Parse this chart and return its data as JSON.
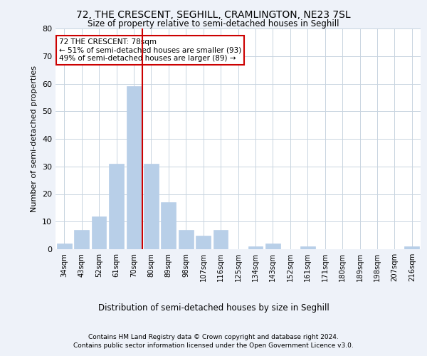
{
  "title1": "72, THE CRESCENT, SEGHILL, CRAMLINGTON, NE23 7SL",
  "title2": "Size of property relative to semi-detached houses in Seghill",
  "dist_label": "Distribution of semi-detached houses by size in Seghill",
  "ylabel": "Number of semi-detached properties",
  "categories": [
    "34sqm",
    "43sqm",
    "52sqm",
    "61sqm",
    "70sqm",
    "80sqm",
    "89sqm",
    "98sqm",
    "107sqm",
    "116sqm",
    "125sqm",
    "134sqm",
    "143sqm",
    "152sqm",
    "161sqm",
    "171sqm",
    "180sqm",
    "189sqm",
    "198sqm",
    "207sqm",
    "216sqm"
  ],
  "values": [
    2,
    7,
    12,
    31,
    59,
    31,
    17,
    7,
    5,
    7,
    0,
    1,
    2,
    0,
    1,
    0,
    0,
    0,
    0,
    0,
    1
  ],
  "bar_color": "#b8cfe8",
  "bar_edge_color": "#b8cfe8",
  "vline_color": "#cc0000",
  "vline_x": 4.5,
  "annotation_text": "72 THE CRESCENT: 78sqm\n← 51% of semi-detached houses are smaller (93)\n49% of semi-detached houses are larger (89) →",
  "annotation_box_color": "white",
  "annotation_box_edge": "#cc0000",
  "ylim": [
    0,
    80
  ],
  "yticks": [
    0,
    10,
    20,
    30,
    40,
    50,
    60,
    70,
    80
  ],
  "footer1": "Contains HM Land Registry data © Crown copyright and database right 2024.",
  "footer2": "Contains public sector information licensed under the Open Government Licence v3.0.",
  "bg_color": "#eef2f9",
  "plot_bg_color": "#ffffff",
  "grid_color": "#c8d4e0"
}
